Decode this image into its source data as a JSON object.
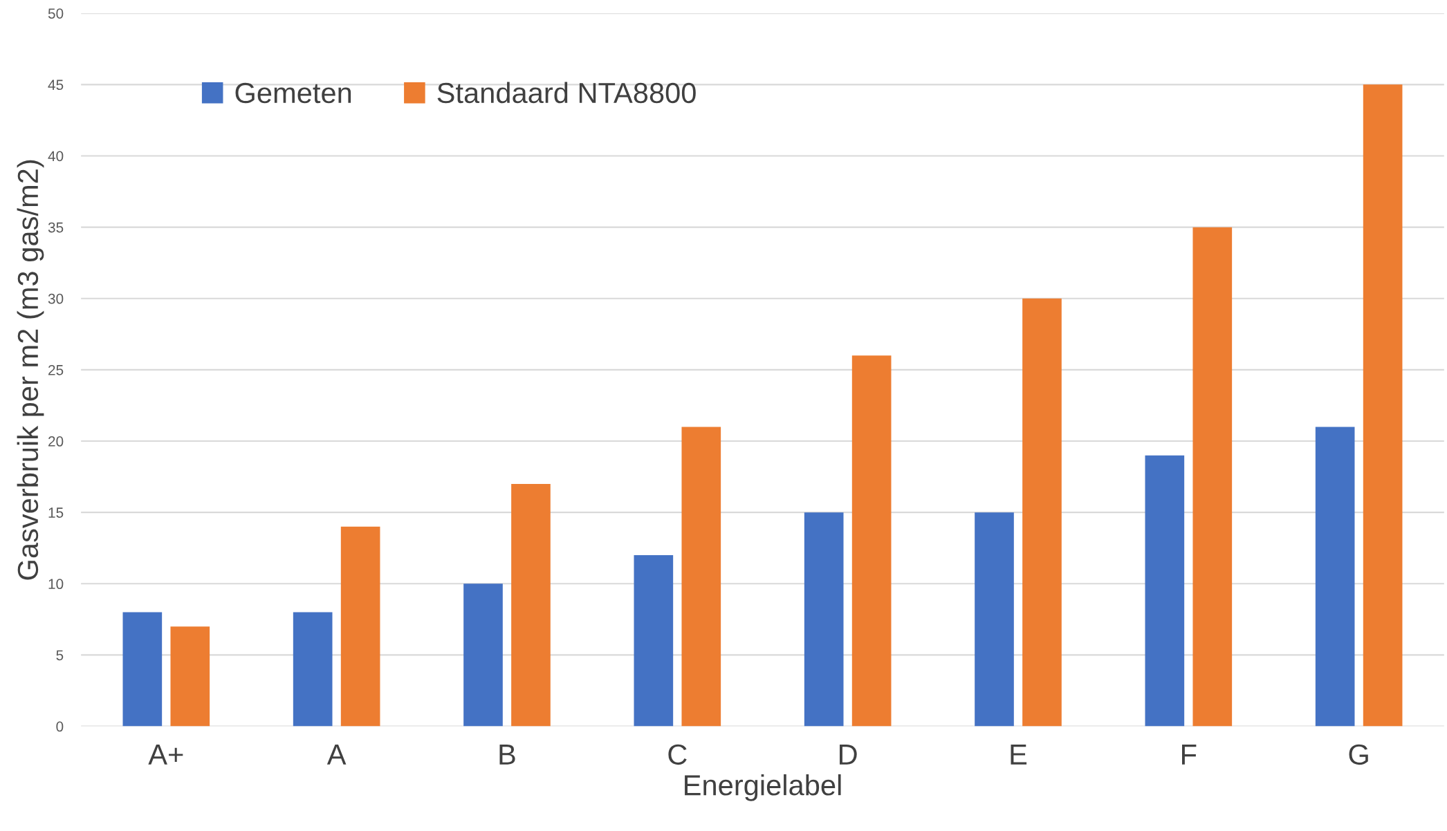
{
  "chart_data": {
    "type": "bar",
    "xlabel": "Energielabel",
    "ylabel": "Gasverbruik per m2 (m3 gas/m2)",
    "categories": [
      "A+",
      "A",
      "B",
      "C",
      "D",
      "E",
      "F",
      "G"
    ],
    "series": [
      {
        "name": "Gemeten",
        "color": "#4472c4",
        "values": [
          8,
          8,
          10,
          12,
          15,
          15,
          19,
          21
        ]
      },
      {
        "name": "Standaard NTA8800",
        "color": "#ed7d31",
        "values": [
          7,
          14,
          17,
          21,
          26,
          30,
          35,
          45
        ]
      }
    ],
    "ylim": [
      0,
      50
    ],
    "yticks": [
      0,
      5,
      10,
      15,
      20,
      25,
      30,
      35,
      40,
      45,
      50
    ],
    "grid": "y",
    "legend": "top left"
  }
}
